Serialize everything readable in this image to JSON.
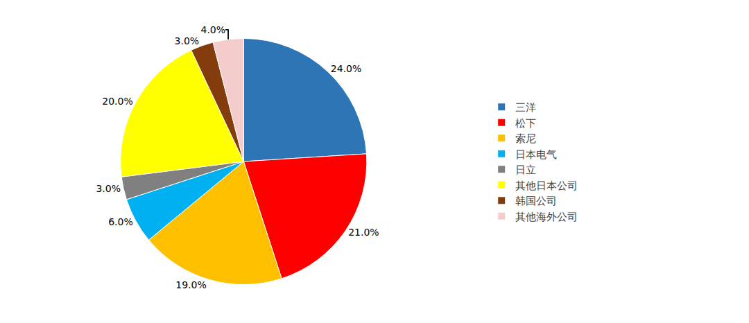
{
  "chart_data": {
    "type": "pie",
    "categories": [
      "三洋",
      "松下",
      "索尼",
      "日本电气",
      "日立",
      "其他日本公司",
      "韩国公司",
      "其他海外公司"
    ],
    "values": [
      24.0,
      21.0,
      19.0,
      6.0,
      3.0,
      20.0,
      3.0,
      4.0
    ],
    "value_labels": [
      "24.0%",
      "21.0%",
      "19.0%",
      "6.0%",
      "3.0%",
      "20.0%",
      "3.0%",
      "4.0%"
    ],
    "colors": [
      "#2E75B6",
      "#FF0000",
      "#FFC000",
      "#00B0F0",
      "#808080",
      "#FFFF00",
      "#843C0C",
      "#F4CCCC"
    ],
    "data_labels": true,
    "legend": "right"
  }
}
